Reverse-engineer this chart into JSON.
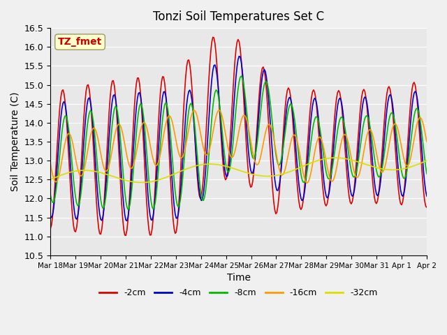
{
  "title": "Tonzi Soil Temperatures Set C",
  "xlabel": "Time",
  "ylabel": "Soil Temperature (C)",
  "ylim": [
    10.5,
    16.5
  ],
  "annotation": "TZ_fmet",
  "annotation_color": "#cc0000",
  "annotation_bg": "#ffffcc",
  "fig_bg": "#f0f0f0",
  "plot_bg": "#e8e8e8",
  "series_colors": {
    "-2cm": "#dd0000",
    "-4cm": "#0000cc",
    "-8cm": "#00bb00",
    "-16cm": "#ff9900",
    "-32cm": "#dddd00"
  },
  "x_tick_labels": [
    "Mar 18",
    "Mar 19",
    "Mar 20",
    "Mar 21",
    "Mar 22",
    "Mar 23",
    "Mar 24",
    "Mar 25",
    "Mar 26",
    "Mar 27",
    "Mar 28",
    "Mar 29",
    "Mar 30",
    "Mar 31",
    "Apr 1",
    "Apr 2"
  ],
  "legend_labels": [
    "-2cm",
    "-4cm",
    "-8cm",
    "-16cm",
    "-32cm"
  ]
}
